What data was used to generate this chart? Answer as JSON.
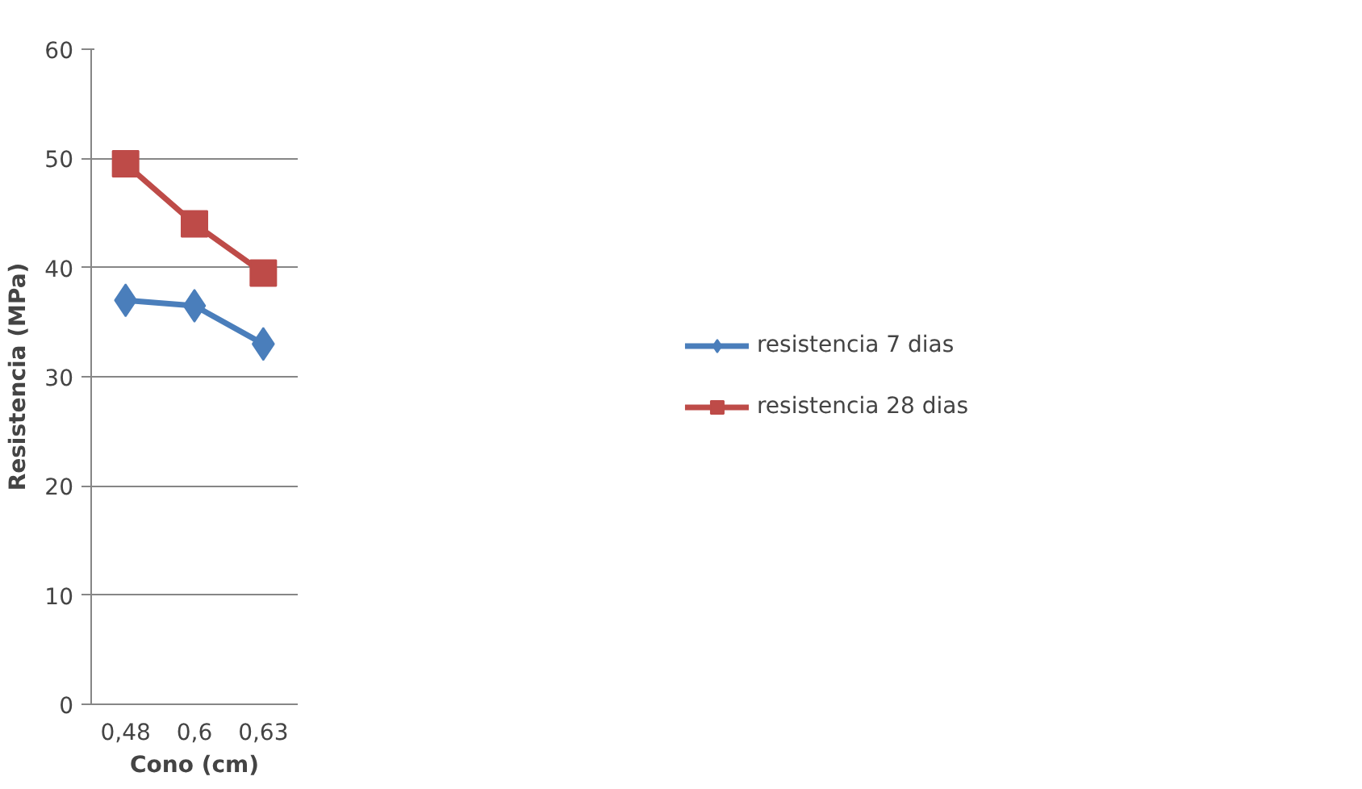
{
  "chart_data": {
    "type": "line",
    "xlabel": "Cono (cm)",
    "ylabel": "Resistencia (MPa)",
    "categories": [
      "0,48",
      "0,6",
      "0,63"
    ],
    "series": [
      {
        "name": "resistencia 7 dias",
        "color": "#4a7ebb",
        "marker": "diamond",
        "values": [
          37,
          36.5,
          33
        ]
      },
      {
        "name": "resistencia 28 dias",
        "color": "#be4b48",
        "marker": "square",
        "values": [
          49.5,
          44,
          39.5
        ]
      }
    ],
    "ylim": [
      0,
      60
    ],
    "yticks": [
      0,
      10,
      20,
      30,
      40,
      50,
      60
    ],
    "grid": "y",
    "legend": "right"
  }
}
